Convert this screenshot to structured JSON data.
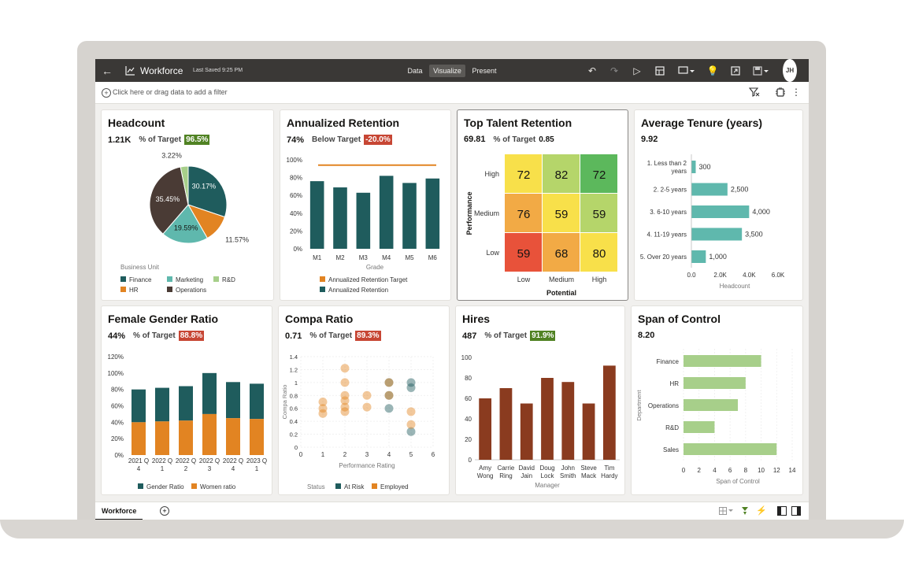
{
  "app": {
    "title": "Workforce",
    "last_saved": "Last Saved 9:25 PM",
    "modes": [
      "Data",
      "Visualize",
      "Present"
    ],
    "active_mode": "Visualize",
    "user_initials": "JH",
    "filter_placeholder": "Click here or drag data to add a filter",
    "sheet_tab": "Workforce",
    "add_tab": "+"
  },
  "icons": {
    "back": "back-arrow-icon",
    "viz": "line-chart-icon",
    "undo": "undo-icon",
    "redo": "redo-icon",
    "play": "play-icon",
    "data_actions": "data-actions-icon",
    "comment": "comment-icon",
    "insights": "lightbulb-icon",
    "export": "export-icon",
    "save": "save-icon",
    "filter_add": "filter-plus-icon",
    "auto_insights": "auto-insights-icon",
    "more": "more-vertical-icon",
    "filter_clear": "filter-clear-icon",
    "grid": "grid-icon",
    "refresh": "refresh-icon",
    "layout_left": "layout-left-icon",
    "layout_right": "layout-right-icon"
  },
  "colors": {
    "teal_dark": "#1f5c5d",
    "teal_light": "#5fb8ad",
    "orange": "#e28422",
    "green_light": "#a7cf8a",
    "brown_dark": "#4a3b35",
    "brown": "#8a3b1f",
    "good": "#508223",
    "bad": "#c74634",
    "heat_green": "#5cb85c",
    "heat_lime": "#b5d56a",
    "heat_yellow": "#f8e04a",
    "heat_orange": "#f2aa45",
    "heat_red": "#e8523a"
  },
  "cards": {
    "headcount": {
      "title": "Headcount",
      "value": "1.21K",
      "label": "% of Target",
      "badge": "96.5%"
    },
    "retention": {
      "title": "Annualized Retention",
      "value": "74%",
      "label": "Below Target",
      "badge": "-20.0%"
    },
    "talent": {
      "title": "Top Talent Retention",
      "value": "69.81",
      "label": "% of Target",
      "badge": "0.85"
    },
    "tenure": {
      "title": "Average Tenure (years)",
      "value": "9.92"
    },
    "gender": {
      "title": "Female Gender Ratio",
      "value": "44%",
      "label": "% of Target",
      "badge": "88.8%"
    },
    "compa": {
      "title": "Compa Ratio",
      "value": "0.71",
      "label": "% of Target",
      "badge": "89.3%"
    },
    "hires": {
      "title": "Hires",
      "value": "487",
      "label": "% of Target",
      "badge": "91.9%"
    },
    "span": {
      "title": "Span of Control",
      "value": "8.20"
    }
  },
  "chart_data": [
    {
      "id": "headcount",
      "type": "pie",
      "legend_title": "Business Unit",
      "slices": [
        {
          "name": "Finance",
          "value": 30.17,
          "label": "30.17%",
          "color": "#1f5c5d"
        },
        {
          "name": "HR",
          "value": 11.57,
          "label": "11.57%",
          "color": "#e28422"
        },
        {
          "name": "Marketing",
          "value": 19.59,
          "label": "19.59%",
          "color": "#5fb8ad"
        },
        {
          "name": "Operations",
          "value": 35.45,
          "label": "35.45%",
          "color": "#4a3b35"
        },
        {
          "name": "R&D",
          "value": 3.22,
          "label": "3.22%",
          "color": "#a7cf8a"
        }
      ],
      "legend": [
        "Finance",
        "Marketing",
        "R&D",
        "HR",
        "Operations"
      ]
    },
    {
      "id": "retention",
      "type": "bar",
      "categories": [
        "M1",
        "M2",
        "M3",
        "M4",
        "M5",
        "M6"
      ],
      "values": [
        76,
        69,
        63,
        82,
        74,
        79
      ],
      "target": 94,
      "xlabel": "Grade",
      "ylim": [
        0,
        100
      ],
      "yticks": [
        "0%",
        "20%",
        "40%",
        "60%",
        "80%",
        "100%"
      ],
      "legend": [
        "Annualized Retention Target",
        "Annualized Retention"
      ]
    },
    {
      "id": "talent",
      "type": "heatmap",
      "rows": [
        "High",
        "Medium",
        "Low"
      ],
      "cols": [
        "Low",
        "Medium",
        "High"
      ],
      "values": [
        [
          72,
          82,
          72
        ],
        [
          76,
          59,
          59
        ],
        [
          59,
          68,
          80
        ]
      ],
      "cell_colors": [
        [
          "#f8e04a",
          "#b5d56a",
          "#5cb85c"
        ],
        [
          "#f2aa45",
          "#f8e04a",
          "#b5d56a"
        ],
        [
          "#e8523a",
          "#f2aa45",
          "#f8e04a"
        ]
      ],
      "xlabel": "Potential",
      "ylabel": "Performance"
    },
    {
      "id": "tenure",
      "type": "bar",
      "categories": [
        "1. Less than 2 years",
        "2. 2-5 years",
        "3. 6-10 years",
        "4. 11-19 years",
        "5. Over 20 years"
      ],
      "values": [
        300,
        2500,
        4000,
        3500,
        1000
      ],
      "value_labels": [
        "300",
        "2,500",
        "4,000",
        "3,500",
        "1,000"
      ],
      "xlim": [
        0,
        6000
      ],
      "xticks": [
        "0.0",
        "2.0K",
        "4.0K",
        "6.0K"
      ],
      "xlabel": "Headcount"
    },
    {
      "id": "gender",
      "type": "bar",
      "categories": [
        "2021 Q 4",
        "2022 Q 1",
        "2022 Q 2",
        "2022 Q 3",
        "2022 Q 4",
        "2023 Q 1"
      ],
      "series": [
        {
          "name": "Women ratio",
          "values": [
            40,
            41,
            42,
            50,
            45,
            44
          ]
        },
        {
          "name": "Gender Ratio",
          "values": [
            40,
            41,
            42,
            50,
            44,
            43
          ]
        }
      ],
      "ylim": [
        0,
        120
      ],
      "yticks": [
        "0%",
        "20%",
        "40%",
        "60%",
        "80%",
        "100%",
        "120%"
      ],
      "legend": [
        "Gender Ratio",
        "Women ratio"
      ]
    },
    {
      "id": "compa",
      "type": "scatter",
      "xlabel": "Performance Rating",
      "ylabel": "Compa Ratio",
      "xlim": [
        0,
        6
      ],
      "ylim": [
        0,
        1.4
      ],
      "xticks": [
        "0",
        "1",
        "2",
        "3",
        "4",
        "5",
        "6"
      ],
      "yticks": [
        "0",
        "0.2",
        "0.4",
        "0.6",
        "0.8",
        "1",
        "1.2",
        "1.4"
      ],
      "legend_title": "Status",
      "legend": [
        "At Risk",
        "Employed"
      ],
      "points": [
        {
          "x": 1,
          "y": 0.7,
          "s": "Employed"
        },
        {
          "x": 1,
          "y": 0.6,
          "s": "Employed"
        },
        {
          "x": 1,
          "y": 0.52,
          "s": "Employed"
        },
        {
          "x": 2,
          "y": 1.22,
          "s": "Employed"
        },
        {
          "x": 2,
          "y": 1.0,
          "s": "Employed"
        },
        {
          "x": 2,
          "y": 0.8,
          "s": "Employed"
        },
        {
          "x": 2,
          "y": 0.72,
          "s": "Employed"
        },
        {
          "x": 2,
          "y": 0.62,
          "s": "Employed"
        },
        {
          "x": 2,
          "y": 0.55,
          "s": "Employed"
        },
        {
          "x": 3,
          "y": 0.8,
          "s": "Employed"
        },
        {
          "x": 3,
          "y": 0.62,
          "s": "Employed"
        },
        {
          "x": 4,
          "y": 1.0,
          "s": "At Risk"
        },
        {
          "x": 4,
          "y": 0.8,
          "s": "At Risk"
        },
        {
          "x": 4,
          "y": 0.6,
          "s": "At Risk"
        },
        {
          "x": 4,
          "y": 1.0,
          "s": "Employed"
        },
        {
          "x": 4,
          "y": 0.8,
          "s": "Employed"
        },
        {
          "x": 5,
          "y": 1.0,
          "s": "At Risk"
        },
        {
          "x": 5,
          "y": 0.92,
          "s": "At Risk"
        },
        {
          "x": 5,
          "y": 0.24,
          "s": "At Risk"
        },
        {
          "x": 5,
          "y": 0.55,
          "s": "Employed"
        },
        {
          "x": 5,
          "y": 0.35,
          "s": "Employed"
        }
      ]
    },
    {
      "id": "hires",
      "type": "bar",
      "categories": [
        "Amy Wong",
        "Carrie Ring",
        "David Jain",
        "Doug Lock",
        "John Smith",
        "Steve Mack",
        "Tim Hardy"
      ],
      "cat_lines": [
        [
          "Amy",
          "Wong"
        ],
        [
          "Carrie",
          "Ring"
        ],
        [
          "David",
          "Jain"
        ],
        [
          "Doug",
          "Lock"
        ],
        [
          "John",
          "Smith"
        ],
        [
          "Steve",
          "Mack"
        ],
        [
          "Tim",
          "Hardy"
        ]
      ],
      "values": [
        60,
        70,
        55,
        80,
        76,
        55,
        92
      ],
      "xlabel": "Manager",
      "ylim": [
        0,
        100
      ],
      "yticks": [
        "0",
        "20",
        "40",
        "60",
        "80",
        "100"
      ]
    },
    {
      "id": "span",
      "type": "bar",
      "categories": [
        "Finance",
        "HR",
        "Operations",
        "R&D",
        "Sales"
      ],
      "values": [
        10,
        8,
        7,
        4,
        12
      ],
      "xlim": [
        0,
        14
      ],
      "xticks": [
        "0",
        "2",
        "4",
        "6",
        "8",
        "10",
        "12",
        "14"
      ],
      "xlabel": "Span of Control",
      "ylabel": "Department"
    }
  ]
}
